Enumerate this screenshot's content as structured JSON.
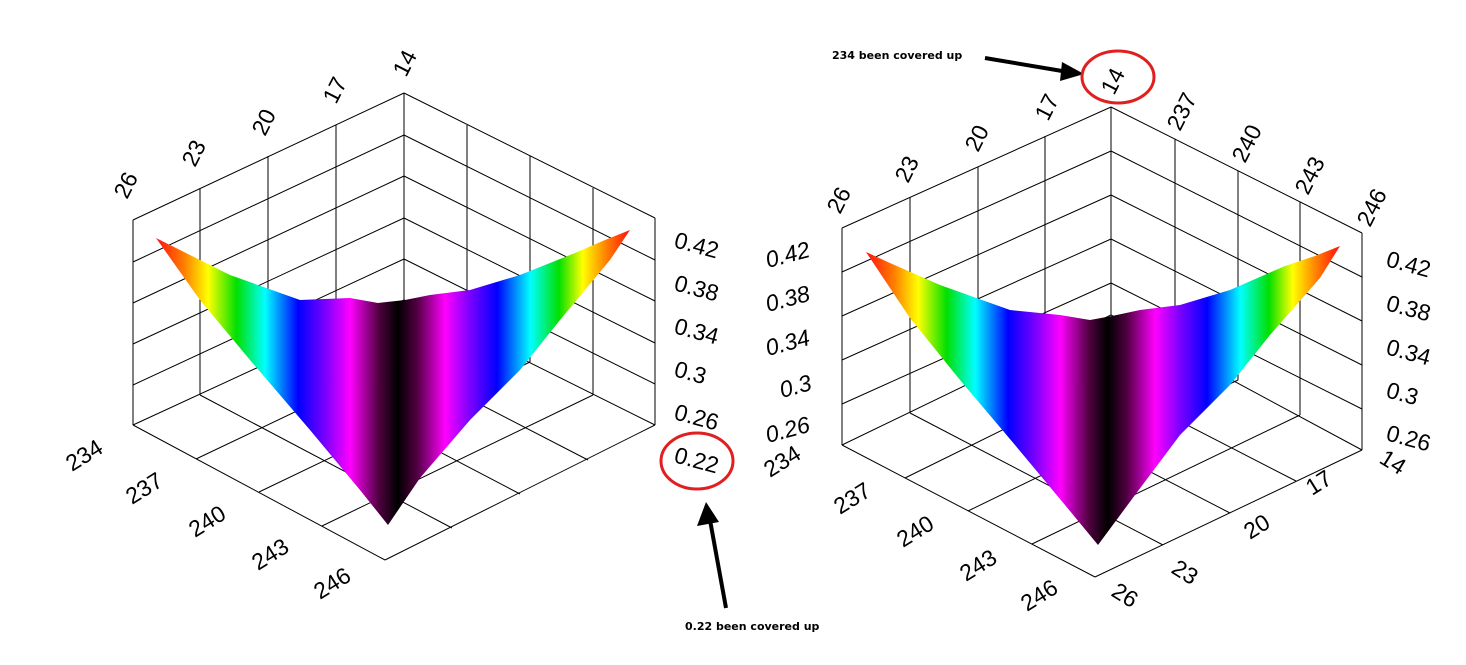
{
  "chart_data": [
    {
      "type": "surface",
      "x_ticks": [
        "234",
        "237",
        "240",
        "243",
        "246"
      ],
      "y_ticks": [
        "26",
        "23",
        "20",
        "17",
        "14"
      ],
      "z_ticks": [
        "0.42",
        "0.38",
        "0.34",
        "0.3",
        "0.26",
        "0.22"
      ],
      "surface_description_values": {
        "corner_high_left": 0.42,
        "corner_high_right": 0.42,
        "valley_min": 0.22
      },
      "colormap": [
        "#ff0000",
        "#ffff00",
        "#00ff00",
        "#00ffff",
        "#0000ff",
        "#ff00ff",
        "#000000"
      ]
    },
    {
      "type": "surface",
      "x_ticks": [
        "234",
        "237",
        "240",
        "243",
        "246"
      ],
      "y_ticks": [
        "26",
        "23",
        "20",
        "17",
        "14"
      ],
      "top_right_ticks": [
        "237",
        "240",
        "243",
        "246"
      ],
      "left_z_ticks": [
        "0.42",
        "0.38",
        "0.34",
        "0.3",
        "0.26"
      ],
      "right_z_ticks": [
        "0.42",
        "0.38",
        "0.34",
        "0.3",
        "0.26"
      ],
      "bottom_right_ticks": [
        "14",
        "17",
        "20",
        "23",
        "26"
      ],
      "colormap": [
        "#ff0000",
        "#ffff00",
        "#00ff00",
        "#00ffff",
        "#0000ff",
        "#ff00ff",
        "#000000"
      ]
    }
  ],
  "annotations": {
    "top_note": "234 been covered up",
    "bottom_note": "0.22 been covered up"
  }
}
